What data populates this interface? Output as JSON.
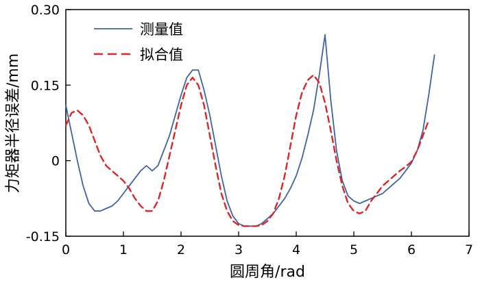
{
  "figure": {
    "x_axis_title": "圆周角/rad",
    "y_axis_title": "力矩器半径误差/mm"
  },
  "legend": {
    "position": "top-left",
    "entries": [
      {
        "label": "测量值",
        "color": "#3f62a7",
        "line_style": "solid"
      },
      {
        "label": "拟合值",
        "color": "#e02424",
        "line_style": "dashed"
      }
    ]
  },
  "chart_data": {
    "type": "line",
    "title": "",
    "xlabel": "圆周角/rad",
    "ylabel": "力矩器半径误差/mm",
    "xlim": [
      0,
      7
    ],
    "ylim": [
      -0.15,
      0.3
    ],
    "grid": false,
    "legend_position": "top-left",
    "x_ticks": [
      0,
      1,
      2,
      3,
      4,
      5,
      6,
      7
    ],
    "x_tick_labels": [
      "0",
      "1",
      "2",
      "3",
      "4",
      "5",
      "6",
      "7"
    ],
    "y_ticks": [
      -0.15,
      0,
      0.15,
      0.3
    ],
    "y_tick_labels": [
      "-0.15",
      "0",
      "0.15",
      "0.30"
    ],
    "series": [
      {
        "name": "测量值",
        "color": "#3f62a7",
        "style": "solid",
        "x": [
          0.0,
          0.1,
          0.2,
          0.3,
          0.4,
          0.5,
          0.6,
          0.7,
          0.8,
          0.9,
          1.0,
          1.1,
          1.2,
          1.3,
          1.4,
          1.5,
          1.6,
          1.7,
          1.8,
          1.9,
          2.0,
          2.1,
          2.2,
          2.3,
          2.4,
          2.5,
          2.6,
          2.7,
          2.8,
          2.9,
          3.0,
          3.1,
          3.2,
          3.3,
          3.4,
          3.5,
          3.6,
          3.7,
          3.8,
          3.9,
          4.0,
          4.1,
          4.2,
          4.3,
          4.4,
          4.5,
          4.6,
          4.7,
          4.8,
          4.9,
          5.0,
          5.1,
          5.2,
          5.3,
          5.4,
          5.5,
          5.6,
          5.7,
          5.8,
          5.9,
          6.0,
          6.1,
          6.2,
          6.3,
          6.4
        ],
        "y": [
          0.11,
          0.055,
          0.0,
          -0.05,
          -0.085,
          -0.1,
          -0.1,
          -0.095,
          -0.09,
          -0.08,
          -0.065,
          -0.05,
          -0.035,
          -0.02,
          -0.01,
          -0.02,
          -0.01,
          0.02,
          0.05,
          0.09,
          0.13,
          0.165,
          0.18,
          0.18,
          0.14,
          0.09,
          0.03,
          -0.03,
          -0.08,
          -0.11,
          -0.125,
          -0.13,
          -0.13,
          -0.13,
          -0.125,
          -0.115,
          -0.105,
          -0.09,
          -0.075,
          -0.055,
          -0.03,
          0.005,
          0.05,
          0.1,
          0.17,
          0.25,
          0.12,
          0.02,
          -0.04,
          -0.07,
          -0.08,
          -0.085,
          -0.08,
          -0.075,
          -0.07,
          -0.065,
          -0.055,
          -0.045,
          -0.035,
          -0.02,
          -0.005,
          0.02,
          0.06,
          0.13,
          0.21
        ]
      },
      {
        "name": "拟合值",
        "color": "#e02424",
        "style": "dashed",
        "x": [
          0.0,
          0.1,
          0.2,
          0.3,
          0.4,
          0.5,
          0.6,
          0.7,
          0.8,
          0.9,
          1.0,
          1.1,
          1.2,
          1.3,
          1.4,
          1.5,
          1.6,
          1.7,
          1.8,
          1.9,
          2.0,
          2.1,
          2.2,
          2.3,
          2.4,
          2.5,
          2.6,
          2.7,
          2.8,
          2.9,
          3.0,
          3.1,
          3.2,
          3.3,
          3.4,
          3.5,
          3.6,
          3.7,
          3.8,
          3.9,
          4.0,
          4.1,
          4.2,
          4.3,
          4.4,
          4.5,
          4.6,
          4.7,
          4.8,
          4.9,
          5.0,
          5.1,
          5.2,
          5.3,
          5.4,
          5.5,
          5.6,
          5.7,
          5.8,
          5.9,
          6.0,
          6.1,
          6.2,
          6.3
        ],
        "y": [
          0.07,
          0.095,
          0.1,
          0.09,
          0.07,
          0.04,
          0.01,
          -0.01,
          -0.02,
          -0.03,
          -0.04,
          -0.055,
          -0.075,
          -0.09,
          -0.1,
          -0.1,
          -0.08,
          -0.04,
          0.01,
          0.06,
          0.11,
          0.15,
          0.165,
          0.15,
          0.11,
          0.05,
          -0.01,
          -0.065,
          -0.1,
          -0.12,
          -0.128,
          -0.13,
          -0.13,
          -0.13,
          -0.128,
          -0.12,
          -0.105,
          -0.075,
          -0.03,
          0.03,
          0.09,
          0.135,
          0.16,
          0.17,
          0.155,
          0.115,
          0.06,
          0.0,
          -0.05,
          -0.085,
          -0.1,
          -0.105,
          -0.1,
          -0.08,
          -0.065,
          -0.05,
          -0.04,
          -0.03,
          -0.02,
          -0.012,
          -0.002,
          0.02,
          0.05,
          0.08
        ]
      }
    ]
  }
}
